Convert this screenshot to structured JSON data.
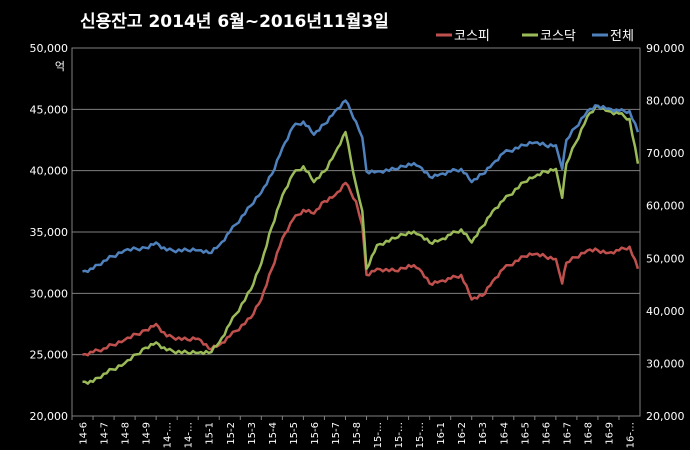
{
  "chart_data": {
    "type": "line",
    "title": "신용잔고  2014년 6월~2016년11월3일",
    "left_axis": {
      "unit": "억",
      "ylim": [
        20000,
        50000
      ],
      "ticks": [
        "20,000",
        "25,000",
        "30,000",
        "35,000",
        "40,000",
        "45,000",
        "50,000"
      ],
      "tick_values": [
        20000,
        25000,
        30000,
        35000,
        40000,
        45000,
        50000
      ]
    },
    "right_axis": {
      "ylim": [
        20000,
        90000
      ],
      "ticks": [
        "20,000",
        "30,000",
        "40,000",
        "50,000",
        "60,000",
        "70,000",
        "80,000",
        "90,000"
      ],
      "tick_values": [
        20000,
        30000,
        40000,
        50000,
        60000,
        70000,
        80000,
        90000
      ]
    },
    "categories": [
      "14-6",
      "14-7",
      "14-8",
      "14-9",
      "14-…",
      "14-…",
      "15-1",
      "15-2",
      "15-3",
      "15-4",
      "15-5",
      "15-6",
      "15-7",
      "15-8",
      "15-…",
      "15-…",
      "15-…",
      "16-1",
      "16-2",
      "16-3",
      "16-4",
      "16-5",
      "16-6",
      "16-7",
      "16-8",
      "16-9",
      "16-…"
    ],
    "grid": true,
    "legend_position": "top-right",
    "series": [
      {
        "name": "코스피",
        "color": "#c0504d",
        "axis": "left",
        "points": [
          [
            0,
            25000
          ],
          [
            0.5,
            25200
          ],
          [
            1,
            25500
          ],
          [
            2,
            26200
          ],
          [
            3,
            27000
          ],
          [
            3.5,
            27500
          ],
          [
            4,
            26500
          ],
          [
            5,
            26200
          ],
          [
            5.5,
            26300
          ],
          [
            6,
            25500
          ],
          [
            6.5,
            25800
          ],
          [
            7,
            26500
          ],
          [
            8,
            28000
          ],
          [
            8.5,
            29500
          ],
          [
            9,
            32000
          ],
          [
            9.5,
            34500
          ],
          [
            10,
            36000
          ],
          [
            10.5,
            36800
          ],
          [
            11,
            36500
          ],
          [
            11.5,
            37500
          ],
          [
            12,
            38000
          ],
          [
            12.5,
            39000
          ],
          [
            13,
            37500
          ],
          [
            13.3,
            35500
          ],
          [
            13.5,
            31500
          ],
          [
            14,
            32000
          ],
          [
            15,
            31800
          ],
          [
            15.5,
            32300
          ],
          [
            16,
            32000
          ],
          [
            16.5,
            30800
          ],
          [
            17,
            31000
          ],
          [
            17.5,
            31200
          ],
          [
            18,
            31500
          ],
          [
            18.5,
            29500
          ],
          [
            19,
            29800
          ],
          [
            19.5,
            31000
          ],
          [
            20,
            32000
          ],
          [
            21,
            33000
          ],
          [
            21.5,
            33200
          ],
          [
            22,
            33000
          ],
          [
            22.5,
            32800
          ],
          [
            22.8,
            30800
          ],
          [
            23,
            32500
          ],
          [
            24,
            33500
          ],
          [
            24.5,
            33500
          ],
          [
            25,
            33300
          ],
          [
            25.5,
            33500
          ],
          [
            26,
            33800
          ],
          [
            26.4,
            32000
          ]
        ]
      },
      {
        "name": "코스닥",
        "color": "#9bbb59",
        "axis": "right",
        "points": [
          [
            0,
            26500
          ],
          [
            0.5,
            26500
          ],
          [
            1,
            28000
          ],
          [
            2,
            30000
          ],
          [
            3,
            33000
          ],
          [
            3.5,
            34000
          ],
          [
            4,
            32500
          ],
          [
            5,
            32000
          ],
          [
            5.5,
            32000
          ],
          [
            6,
            32000
          ],
          [
            6.5,
            34000
          ],
          [
            7,
            37500
          ],
          [
            8,
            44000
          ],
          [
            8.5,
            49000
          ],
          [
            9,
            56000
          ],
          [
            9.5,
            62000
          ],
          [
            10,
            66000
          ],
          [
            10.5,
            67500
          ],
          [
            11,
            64500
          ],
          [
            11.5,
            66500
          ],
          [
            12,
            70000
          ],
          [
            12.5,
            74000
          ],
          [
            13,
            64000
          ],
          [
            13.3,
            59000
          ],
          [
            13.5,
            48000
          ],
          [
            14,
            52500
          ],
          [
            15,
            54000
          ],
          [
            15.5,
            55000
          ],
          [
            16,
            54500
          ],
          [
            16.5,
            53000
          ],
          [
            17,
            53500
          ],
          [
            17.5,
            54500
          ],
          [
            18,
            55500
          ],
          [
            18.5,
            53000
          ],
          [
            19,
            56000
          ],
          [
            19.5,
            59000
          ],
          [
            20,
            61000
          ],
          [
            21,
            64500
          ],
          [
            21.5,
            65500
          ],
          [
            22,
            66500
          ],
          [
            22.5,
            67000
          ],
          [
            22.8,
            61500
          ],
          [
            23,
            68000
          ],
          [
            24,
            77000
          ],
          [
            24.5,
            79000
          ],
          [
            25,
            78000
          ],
          [
            25.5,
            77500
          ],
          [
            26,
            76500
          ],
          [
            26.4,
            68000
          ]
        ]
      },
      {
        "name": "전체",
        "color": "#4f81bd",
        "axis": "right",
        "points": [
          [
            0,
            47500
          ],
          [
            0.5,
            48000
          ],
          [
            1,
            49500
          ],
          [
            2,
            51500
          ],
          [
            3,
            52000
          ],
          [
            3.5,
            53000
          ],
          [
            4,
            51500
          ],
          [
            5,
            51500
          ],
          [
            5.5,
            51500
          ],
          [
            6,
            51000
          ],
          [
            6.5,
            52500
          ],
          [
            7,
            55000
          ],
          [
            8,
            60000
          ],
          [
            8.5,
            62500
          ],
          [
            9,
            66000
          ],
          [
            9.5,
            71000
          ],
          [
            10,
            75000
          ],
          [
            10.5,
            76000
          ],
          [
            11,
            73500
          ],
          [
            11.5,
            75500
          ],
          [
            12,
            78000
          ],
          [
            12.5,
            80000
          ],
          [
            13,
            76000
          ],
          [
            13.3,
            73000
          ],
          [
            13.5,
            66500
          ],
          [
            14,
            66500
          ],
          [
            15,
            67000
          ],
          [
            15.5,
            68000
          ],
          [
            16,
            67500
          ],
          [
            16.5,
            65500
          ],
          [
            17,
            66000
          ],
          [
            17.5,
            66500
          ],
          [
            18,
            67000
          ],
          [
            18.5,
            64500
          ],
          [
            19,
            66000
          ],
          [
            19.5,
            68000
          ],
          [
            20,
            70000
          ],
          [
            21,
            71500
          ],
          [
            21.5,
            72000
          ],
          [
            22,
            71500
          ],
          [
            22.5,
            71500
          ],
          [
            22.8,
            67000
          ],
          [
            23,
            72500
          ],
          [
            24,
            78000
          ],
          [
            24.5,
            79000
          ],
          [
            25,
            78500
          ],
          [
            25.5,
            78000
          ],
          [
            26,
            78000
          ],
          [
            26.4,
            74000
          ]
        ]
      }
    ]
  }
}
